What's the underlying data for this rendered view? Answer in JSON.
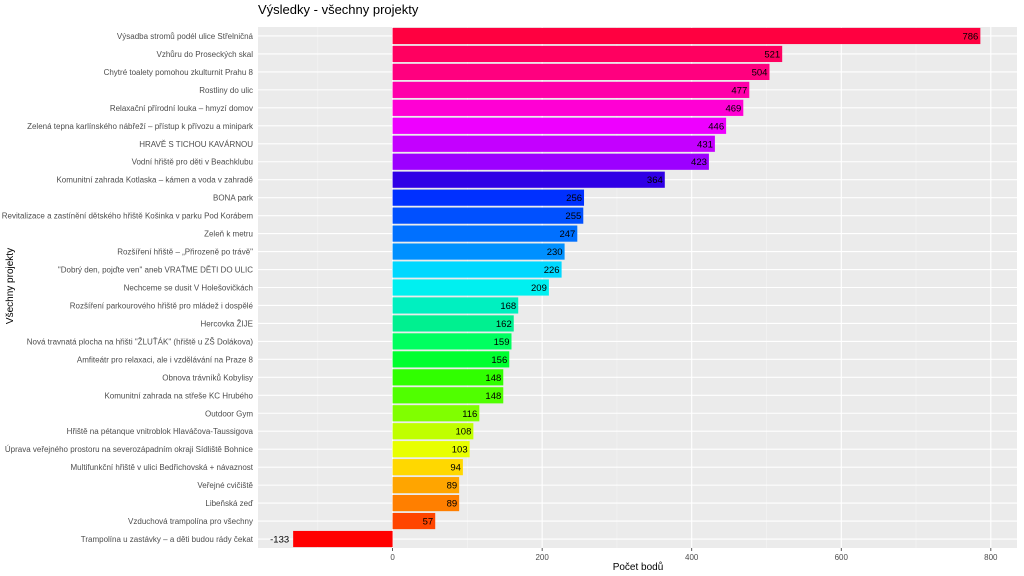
{
  "chart_data": {
    "type": "bar",
    "orientation": "horizontal",
    "title": "Výsledky - všechny projekty",
    "xlabel": "Počet bodů",
    "ylabel": "Všechny projekty",
    "xlim": [
      -180,
      835
    ],
    "xticks": [
      0,
      200,
      400,
      600,
      800
    ],
    "grid": true,
    "legend": "none",
    "categories": [
      "Výsadba stromů podél ulice Střelničná",
      "Vzhůru do Proseckých skal",
      "Chytré toalety pomohou zkulturnit Prahu 8",
      "Rostliny do ulic",
      "Relaxační přírodní louka – hmyzí domov",
      "Zelená tepna karlínského nábřeží – přístup k přívozu a minipark",
      "HRAVĚ S TICHOU KAVÁRNOU",
      "Vodní hřiště pro děti v Beachklubu",
      "Komunitní zahrada Kotlaska – kámen a voda v zahradě",
      "BONA park",
      "Revitalizace a zastínění dětského hřiště Košinka v parku Pod Korábem",
      "Zeleň k metru",
      "Rozšíření hřiště – „Přirozeně po trávě\"",
      "\"Dobrý den, pojďte ven\" aneb VRAŤME DĚTI DO ULIC",
      "Nechceme se dusit V Holešovičkách",
      "Rozšíření parkourového hřiště pro mládež i dospělé",
      "Hercovka ŽIJE",
      "Nová travnatá plocha na hřišti \"ŽLUŤÁK\" (hřiště u ZŠ Dolákova)",
      "Amfiteátr pro relaxaci, ale i vzdělávání na Praze 8",
      "Obnova trávníků Kobylisy",
      "Komunitní zahrada na střeše KC Hrubého",
      "Outdoor Gym",
      "Hřiště na pétanque vnitroblok Hlaváčova-Taussigova",
      "Úprava veřejného prostoru na severozápadním okraji Sídliště Bohnice",
      "Multifunkční hřiště v ulici Bedřichovská + návaznost",
      "Veřejné cvičiště",
      "Libeňská zeď",
      "Vzduchová trampolína pro všechny",
      "Trampolína u zastávky – a děti budou rády čekat"
    ],
    "values": [
      786,
      521,
      504,
      477,
      469,
      446,
      431,
      423,
      364,
      256,
      255,
      247,
      230,
      226,
      209,
      168,
      162,
      159,
      156,
      148,
      148,
      116,
      108,
      103,
      94,
      89,
      89,
      57,
      -133
    ],
    "colors": [
      "#FF0040",
      "#FF0060",
      "#FF007F",
      "#FF00AA",
      "#FF00D4",
      "#EE00FF",
      "#C400FF",
      "#9C00FF",
      "#3000E6",
      "#0030FF",
      "#0050FF",
      "#0070FF",
      "#0090FF",
      "#00D8FF",
      "#00F0F0",
      "#00F0C0",
      "#00F090",
      "#00FF60",
      "#00FF30",
      "#30FF00",
      "#50FF00",
      "#80FF00",
      "#C0FF00",
      "#E8FF00",
      "#FFD800",
      "#FFA500",
      "#FF7F00",
      "#FF4500",
      "#FF0000"
    ]
  }
}
